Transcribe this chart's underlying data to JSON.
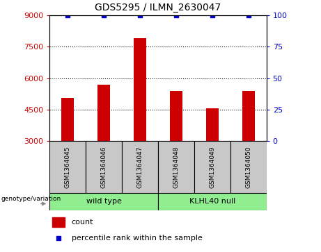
{
  "title": "GDS5295 / ILMN_2630047",
  "samples": [
    "GSM1364045",
    "GSM1364046",
    "GSM1364047",
    "GSM1364048",
    "GSM1364049",
    "GSM1364050"
  ],
  "counts": [
    5050,
    5700,
    7900,
    5400,
    4550,
    5400
  ],
  "percentile_ranks": [
    100,
    100,
    100,
    100,
    100,
    100
  ],
  "ylim_left": [
    3000,
    9000
  ],
  "ylim_right": [
    0,
    100
  ],
  "yticks_left": [
    3000,
    4500,
    6000,
    7500,
    9000
  ],
  "yticks_right": [
    0,
    25,
    50,
    75,
    100
  ],
  "bar_color": "#cc0000",
  "percentile_color": "#0000cc",
  "groups": [
    {
      "label": "wild type",
      "indices": [
        0,
        1,
        2
      ],
      "color": "#90ee90"
    },
    {
      "label": "KLHL40 null",
      "indices": [
        3,
        4,
        5
      ],
      "color": "#90ee90"
    }
  ],
  "group_label": "genotype/variation",
  "legend_count_label": "count",
  "legend_percentile_label": "percentile rank within the sample",
  "grid_color": "black",
  "left_tick_color": "#cc0000",
  "right_tick_color": "#0000cc",
  "sample_box_color": "#c8c8c8",
  "bar_width": 0.35
}
